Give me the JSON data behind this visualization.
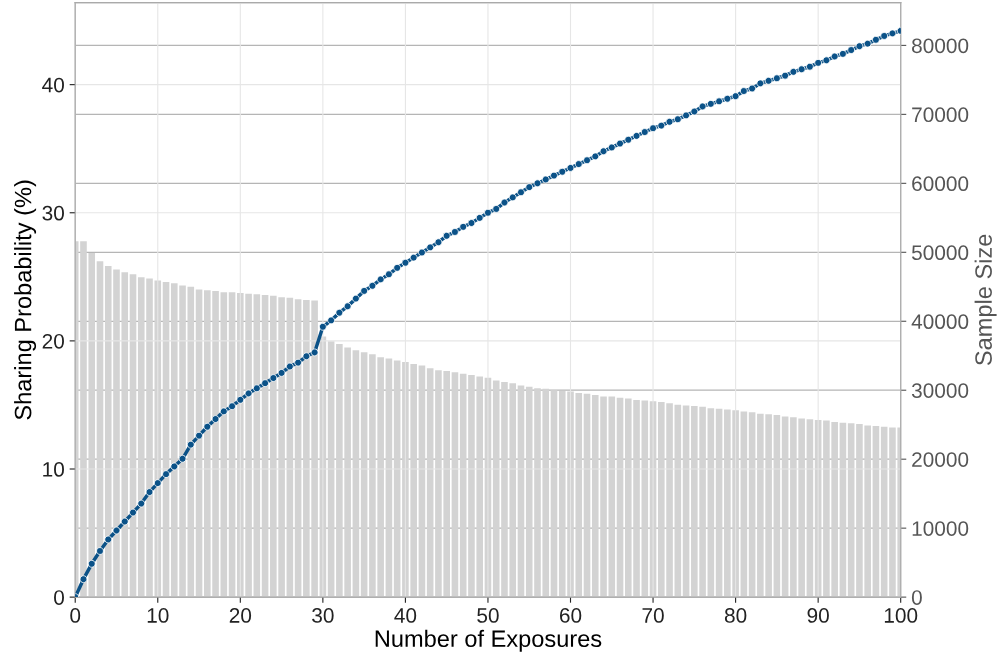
{
  "chart_data": {
    "type": "line",
    "xlabel": "Number of Exposures",
    "ylabel": "Sharing Probability (%)",
    "y2label": "Sample Size",
    "x": [
      0,
      1,
      2,
      3,
      4,
      5,
      6,
      7,
      8,
      9,
      10,
      11,
      12,
      13,
      14,
      15,
      16,
      17,
      18,
      19,
      20,
      21,
      22,
      23,
      24,
      25,
      26,
      27,
      28,
      29,
      30,
      31,
      32,
      33,
      34,
      35,
      36,
      37,
      38,
      39,
      40,
      41,
      42,
      43,
      44,
      45,
      46,
      47,
      48,
      49,
      50,
      51,
      52,
      53,
      54,
      55,
      56,
      57,
      58,
      59,
      60,
      61,
      62,
      63,
      64,
      65,
      66,
      67,
      68,
      69,
      70,
      71,
      72,
      73,
      74,
      75,
      76,
      77,
      78,
      79,
      80,
      81,
      82,
      83,
      84,
      85,
      86,
      87,
      88,
      89,
      90,
      91,
      92,
      93,
      94,
      95,
      96,
      97,
      98,
      99,
      100
    ],
    "series": [
      {
        "type": "bar",
        "axis": "y2",
        "color": "#d3d3d3",
        "values": [
          51600,
          51600,
          49900,
          48700,
          48000,
          47500,
          47100,
          46800,
          46400,
          46200,
          45900,
          45700,
          45500,
          45200,
          45000,
          44600,
          44500,
          44400,
          44200,
          44200,
          44100,
          44000,
          43900,
          43800,
          43700,
          43500,
          43400,
          43200,
          43100,
          43000,
          37800,
          37100,
          36700,
          36200,
          35800,
          35500,
          35200,
          34800,
          34600,
          34300,
          34100,
          33800,
          33600,
          33200,
          32900,
          32800,
          32600,
          32400,
          32200,
          32000,
          31800,
          31400,
          31200,
          31000,
          30700,
          30500,
          30300,
          30200,
          30000,
          29900,
          29800,
          29600,
          29500,
          29300,
          29100,
          29100,
          28900,
          28800,
          28600,
          28500,
          28400,
          28300,
          28100,
          27900,
          27800,
          27700,
          27600,
          27400,
          27300,
          27200,
          27100,
          26900,
          26800,
          26600,
          26500,
          26400,
          26200,
          26100,
          25900,
          25800,
          25700,
          25600,
          25400,
          25300,
          25200,
          25100,
          24900,
          24800,
          24700,
          24600,
          24600
        ]
      },
      {
        "axis": "y",
        "color": "#0b5288",
        "marker": "circle",
        "values": [
          0,
          1.4,
          2.6,
          3.6,
          4.5,
          5.2,
          5.9,
          6.6,
          7.3,
          8.2,
          8.9,
          9.6,
          10.2,
          10.8,
          11.9,
          12.6,
          13.3,
          13.9,
          14.5,
          14.9,
          15.4,
          15.9,
          16.3,
          16.7,
          17.1,
          17.5,
          18.0,
          18.3,
          18.8,
          19.1,
          21.1,
          21.6,
          22.2,
          22.7,
          23.3,
          23.9,
          24.3,
          24.8,
          25.2,
          25.7,
          26.1,
          26.5,
          26.9,
          27.3,
          27.7,
          28.2,
          28.5,
          28.9,
          29.2,
          29.6,
          30.0,
          30.3,
          30.8,
          31.2,
          31.6,
          32.0,
          32.3,
          32.6,
          32.9,
          33.2,
          33.5,
          33.8,
          34.1,
          34.4,
          34.8,
          35.1,
          35.4,
          35.7,
          36.0,
          36.3,
          36.6,
          36.8,
          37.1,
          37.3,
          37.6,
          37.9,
          38.3,
          38.5,
          38.7,
          38.9,
          39.1,
          39.5,
          39.7,
          40.1,
          40.3,
          40.5,
          40.7,
          41.0,
          41.2,
          41.4,
          41.7,
          41.9,
          42.2,
          42.4,
          42.7,
          43.0,
          43.2,
          43.5,
          43.8,
          44.0,
          44.2
        ]
      }
    ],
    "xlim": [
      0,
      100
    ],
    "xticks": [
      0,
      10,
      20,
      30,
      40,
      50,
      60,
      70,
      80,
      90,
      100
    ],
    "ylim": [
      0,
      46.4
    ],
    "yticks": [
      0,
      10,
      20,
      30,
      40
    ],
    "y2lim": [
      0,
      86200
    ],
    "y2ticks": [
      0,
      10000,
      20000,
      30000,
      40000,
      50000,
      60000,
      70000,
      80000
    ],
    "grid": true,
    "line_style": "solid"
  }
}
